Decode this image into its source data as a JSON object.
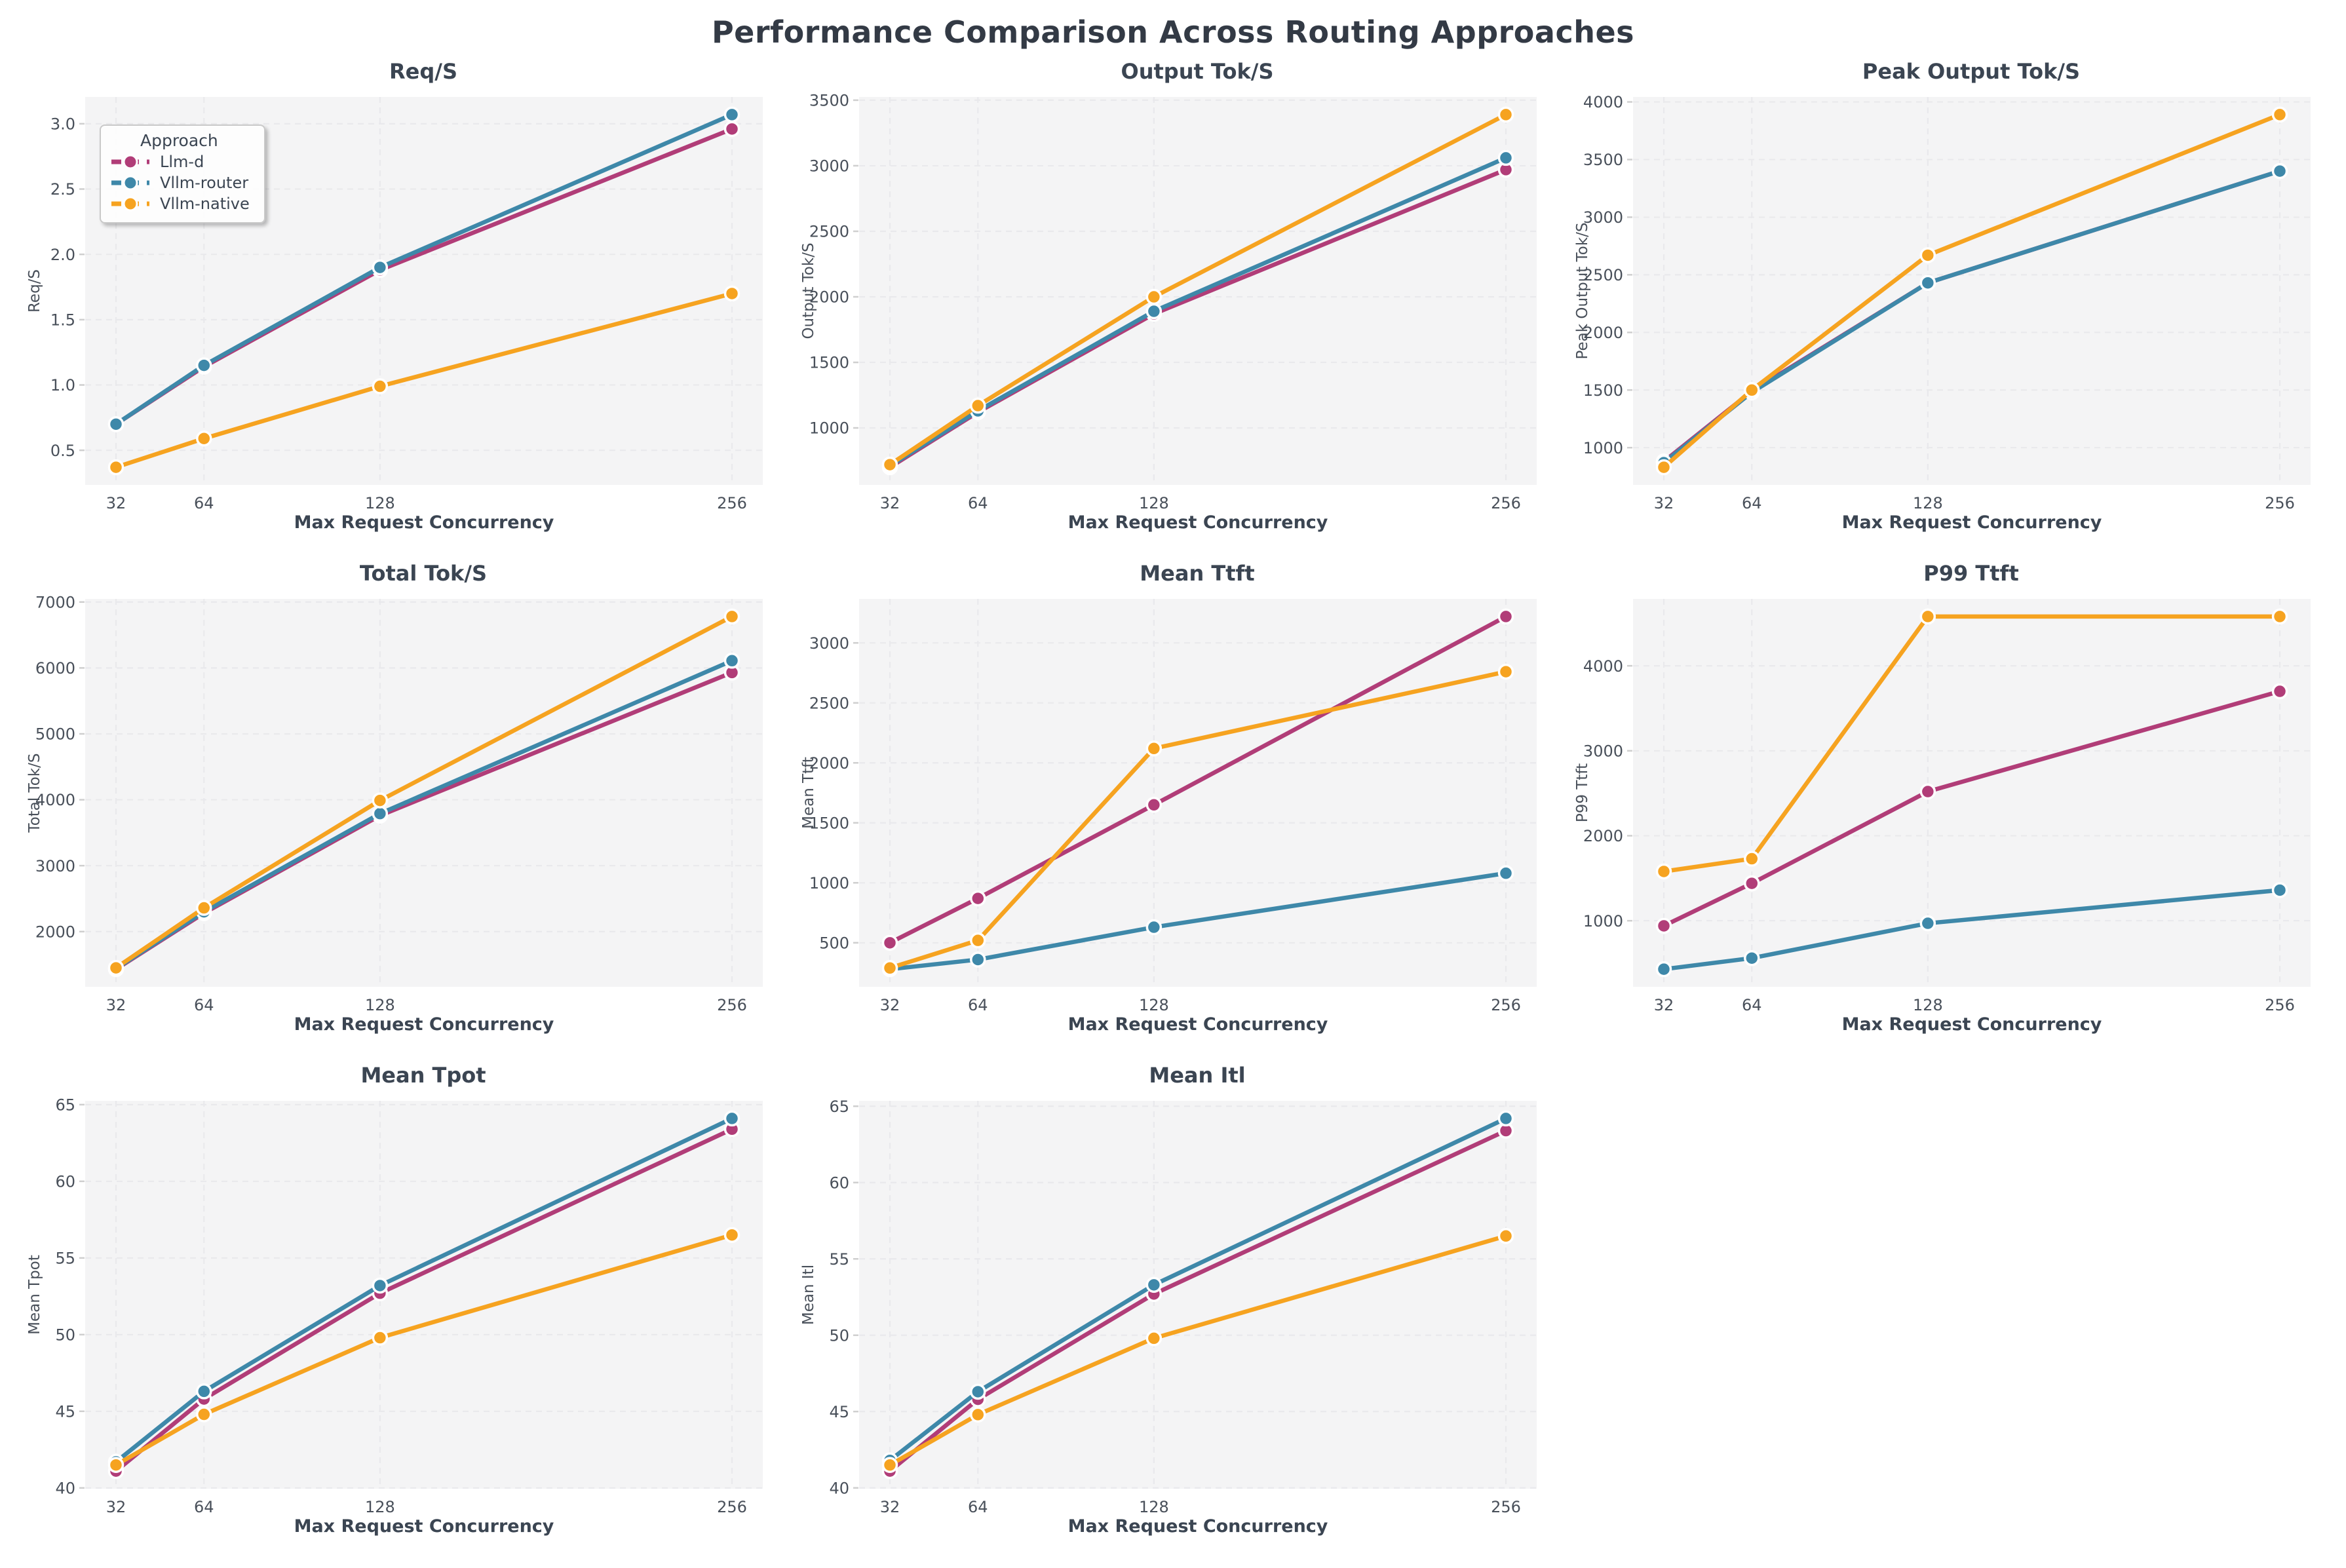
{
  "page_title": "Performance Comparison Across Routing Approaches",
  "legend": {
    "title": "Approach"
  },
  "style": {
    "panel_bg": "#f4f4f5",
    "grid_color": "#e9e9ec",
    "tick_mark_color": "#cfcfcf",
    "tick_text_color": "#49505a",
    "label_text_color": "#3b4552",
    "marker_edge_color": "#ffffff"
  },
  "x_axis": {
    "label": "Max Request Concurrency",
    "ticks": [
      32,
      64,
      128,
      256
    ]
  },
  "chart_data": [
    {
      "type": "line",
      "title": "Req/S",
      "ylabel": "Req/S",
      "xlabel": "Max Request Concurrency",
      "x": [
        32,
        64,
        128,
        256
      ],
      "yticks": [
        0.5,
        1.0,
        1.5,
        2.0,
        2.5,
        3.0
      ],
      "show_legend": true,
      "series": [
        {
          "name": "Llm-d",
          "color": "#b13d78",
          "values": [
            0.7,
            1.14,
            1.88,
            2.96
          ]
        },
        {
          "name": "Vllm-router",
          "color": "#3e88a9",
          "values": [
            0.7,
            1.15,
            1.9,
            3.07
          ]
        },
        {
          "name": "Vllm-native",
          "color": "#f6a320",
          "values": [
            0.37,
            0.59,
            0.99,
            1.7
          ]
        }
      ]
    },
    {
      "type": "line",
      "title": "Output Tok/S",
      "ylabel": "Output Tok/S",
      "xlabel": "Max Request Concurrency",
      "x": [
        32,
        64,
        128,
        256
      ],
      "yticks": [
        1000,
        1500,
        2000,
        2500,
        3000,
        3500
      ],
      "show_legend": false,
      "series": [
        {
          "name": "Llm-d",
          "color": "#b13d78",
          "values": [
            700,
            1120,
            1870,
            2970
          ]
        },
        {
          "name": "Vllm-router",
          "color": "#3e88a9",
          "values": [
            710,
            1130,
            1890,
            3060
          ]
        },
        {
          "name": "Vllm-native",
          "color": "#f6a320",
          "values": [
            720,
            1170,
            2000,
            3390
          ]
        }
      ]
    },
    {
      "type": "line",
      "title": "Peak Output Tok/S",
      "ylabel": "Peak Output Tok/S",
      "xlabel": "Max Request Concurrency",
      "x": [
        32,
        64,
        128,
        256
      ],
      "yticks": [
        1000,
        1500,
        2000,
        2500,
        3000,
        3500,
        4000
      ],
      "show_legend": false,
      "series": [
        {
          "name": "Llm-d",
          "color": "#b13d78",
          "values": [
            880,
            1490,
            2430,
            3400
          ]
        },
        {
          "name": "Vllm-router",
          "color": "#3e88a9",
          "values": [
            870,
            1480,
            2430,
            3400
          ]
        },
        {
          "name": "Vllm-native",
          "color": "#f6a320",
          "values": [
            830,
            1500,
            2670,
            3890
          ]
        }
      ]
    },
    {
      "type": "line",
      "title": "Total Tok/S",
      "ylabel": "Total Tok/S",
      "xlabel": "Max Request Concurrency",
      "x": [
        32,
        64,
        128,
        256
      ],
      "yticks": [
        2000,
        3000,
        4000,
        5000,
        6000,
        7000
      ],
      "show_legend": false,
      "series": [
        {
          "name": "Llm-d",
          "color": "#b13d78",
          "values": [
            1430,
            2280,
            3760,
            5930
          ]
        },
        {
          "name": "Vllm-router",
          "color": "#3e88a9",
          "values": [
            1440,
            2300,
            3790,
            6110
          ]
        },
        {
          "name": "Vllm-native",
          "color": "#f6a320",
          "values": [
            1450,
            2360,
            3990,
            6780
          ]
        }
      ]
    },
    {
      "type": "line",
      "title": "Mean Ttft",
      "ylabel": "Mean Ttft",
      "xlabel": "Max Request Concurrency",
      "x": [
        32,
        64,
        128,
        256
      ],
      "yticks": [
        500,
        1000,
        1500,
        2000,
        2500,
        3000
      ],
      "show_legend": false,
      "series": [
        {
          "name": "Llm-d",
          "color": "#b13d78",
          "values": [
            500,
            870,
            1650,
            3220
          ]
        },
        {
          "name": "Vllm-router",
          "color": "#3e88a9",
          "values": [
            280,
            360,
            630,
            1080
          ]
        },
        {
          "name": "Vllm-native",
          "color": "#f6a320",
          "values": [
            290,
            520,
            2120,
            2760
          ]
        }
      ]
    },
    {
      "type": "line",
      "title": "P99 Ttft",
      "ylabel": "P99 Ttft",
      "xlabel": "Max Request Concurrency",
      "x": [
        32,
        64,
        128,
        256
      ],
      "yticks": [
        1000,
        2000,
        3000,
        4000
      ],
      "show_legend": false,
      "series": [
        {
          "name": "Llm-d",
          "color": "#b13d78",
          "values": [
            940,
            1440,
            2520,
            3700
          ]
        },
        {
          "name": "Vllm-router",
          "color": "#3e88a9",
          "values": [
            430,
            560,
            970,
            1360
          ]
        },
        {
          "name": "Vllm-native",
          "color": "#f6a320",
          "values": [
            1580,
            1730,
            4580,
            4580
          ]
        }
      ]
    },
    {
      "type": "line",
      "title": "Mean Tpot",
      "ylabel": "Mean Tpot",
      "xlabel": "Max Request Concurrency",
      "x": [
        32,
        64,
        128,
        256
      ],
      "yticks": [
        40,
        45,
        50,
        55,
        60,
        65
      ],
      "show_legend": false,
      "series": [
        {
          "name": "Llm-d",
          "color": "#b13d78",
          "values": [
            41.1,
            45.8,
            52.7,
            63.4
          ]
        },
        {
          "name": "Vllm-router",
          "color": "#3e88a9",
          "values": [
            41.7,
            46.3,
            53.2,
            64.1
          ]
        },
        {
          "name": "Vllm-native",
          "color": "#f6a320",
          "values": [
            41.5,
            44.8,
            49.8,
            56.5
          ]
        }
      ]
    },
    {
      "type": "line",
      "title": "Mean Itl",
      "ylabel": "Mean Itl",
      "xlabel": "Max Request Concurrency",
      "x": [
        32,
        64,
        128,
        256
      ],
      "yticks": [
        40,
        45,
        50,
        55,
        60,
        65
      ],
      "show_legend": false,
      "series": [
        {
          "name": "Llm-d",
          "color": "#b13d78",
          "values": [
            41.1,
            45.8,
            52.7,
            63.4
          ]
        },
        {
          "name": "Vllm-router",
          "color": "#3e88a9",
          "values": [
            41.8,
            46.3,
            53.3,
            64.2
          ]
        },
        {
          "name": "Vllm-native",
          "color": "#f6a320",
          "values": [
            41.5,
            44.8,
            49.8,
            56.5
          ]
        }
      ]
    }
  ]
}
